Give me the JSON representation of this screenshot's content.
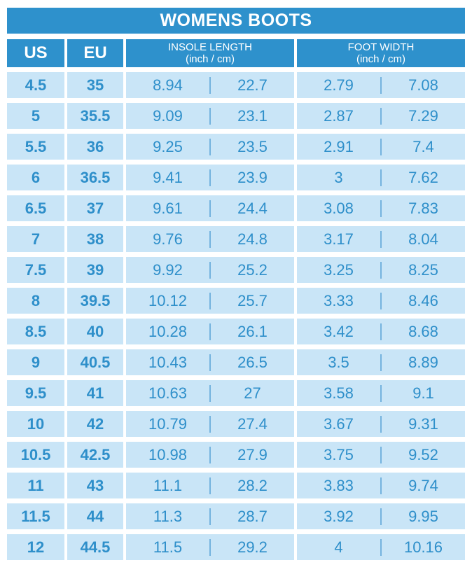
{
  "title": "WOMENS BOOTS",
  "colors": {
    "header_bg": "#2E91CC",
    "cell_bg": "#C9E5F7",
    "text_blue": "#2E8FCA",
    "divider": "#74B3DE",
    "header_text": "#FFFFFF"
  },
  "table": {
    "columns": {
      "us": "US",
      "eu": "EU",
      "insole": {
        "title": "INSOLE LENGTH",
        "subtitle": "(inch / cm)"
      },
      "foot": {
        "title": "FOOT WIDTH",
        "subtitle": "(inch / cm)"
      }
    },
    "rows": [
      {
        "us": "4.5",
        "eu": "35",
        "insole_inch": "8.94",
        "insole_cm": "22.7",
        "foot_inch": "2.79",
        "foot_cm": "7.08"
      },
      {
        "us": "5",
        "eu": "35.5",
        "insole_inch": "9.09",
        "insole_cm": "23.1",
        "foot_inch": "2.87",
        "foot_cm": "7.29"
      },
      {
        "us": "5.5",
        "eu": "36",
        "insole_inch": "9.25",
        "insole_cm": "23.5",
        "foot_inch": "2.91",
        "foot_cm": "7.4"
      },
      {
        "us": "6",
        "eu": "36.5",
        "insole_inch": "9.41",
        "insole_cm": "23.9",
        "foot_inch": "3",
        "foot_cm": "7.62"
      },
      {
        "us": "6.5",
        "eu": "37",
        "insole_inch": "9.61",
        "insole_cm": "24.4",
        "foot_inch": "3.08",
        "foot_cm": "7.83"
      },
      {
        "us": "7",
        "eu": "38",
        "insole_inch": "9.76",
        "insole_cm": "24.8",
        "foot_inch": "3.17",
        "foot_cm": "8.04"
      },
      {
        "us": "7.5",
        "eu": "39",
        "insole_inch": "9.92",
        "insole_cm": "25.2",
        "foot_inch": "3.25",
        "foot_cm": "8.25"
      },
      {
        "us": "8",
        "eu": "39.5",
        "insole_inch": "10.12",
        "insole_cm": "25.7",
        "foot_inch": "3.33",
        "foot_cm": "8.46"
      },
      {
        "us": "8.5",
        "eu": "40",
        "insole_inch": "10.28",
        "insole_cm": "26.1",
        "foot_inch": "3.42",
        "foot_cm": "8.68"
      },
      {
        "us": "9",
        "eu": "40.5",
        "insole_inch": "10.43",
        "insole_cm": "26.5",
        "foot_inch": "3.5",
        "foot_cm": "8.89"
      },
      {
        "us": "9.5",
        "eu": "41",
        "insole_inch": "10.63",
        "insole_cm": "27",
        "foot_inch": "3.58",
        "foot_cm": "9.1"
      },
      {
        "us": "10",
        "eu": "42",
        "insole_inch": "10.79",
        "insole_cm": "27.4",
        "foot_inch": "3.67",
        "foot_cm": "9.31"
      },
      {
        "us": "10.5",
        "eu": "42.5",
        "insole_inch": "10.98",
        "insole_cm": "27.9",
        "foot_inch": "3.75",
        "foot_cm": "9.52"
      },
      {
        "us": "11",
        "eu": "43",
        "insole_inch": "11.1",
        "insole_cm": "28.2",
        "foot_inch": "3.83",
        "foot_cm": "9.74"
      },
      {
        "us": "11.5",
        "eu": "44",
        "insole_inch": "11.3",
        "insole_cm": "28.7",
        "foot_inch": "3.92",
        "foot_cm": "9.95"
      },
      {
        "us": "12",
        "eu": "44.5",
        "insole_inch": "11.5",
        "insole_cm": "29.2",
        "foot_inch": "4",
        "foot_cm": "10.16"
      }
    ]
  },
  "chart_data": {
    "type": "table",
    "title": "WOMENS BOOTS",
    "columns": [
      "US",
      "EU",
      "INSOLE LENGTH (inch)",
      "INSOLE LENGTH (cm)",
      "FOOT WIDTH (inch)",
      "FOOT WIDTH (cm)"
    ],
    "rows": [
      [
        4.5,
        35,
        8.94,
        22.7,
        2.79,
        7.08
      ],
      [
        5,
        35.5,
        9.09,
        23.1,
        2.87,
        7.29
      ],
      [
        5.5,
        36,
        9.25,
        23.5,
        2.91,
        7.4
      ],
      [
        6,
        36.5,
        9.41,
        23.9,
        3,
        7.62
      ],
      [
        6.5,
        37,
        9.61,
        24.4,
        3.08,
        7.83
      ],
      [
        7,
        38,
        9.76,
        24.8,
        3.17,
        8.04
      ],
      [
        7.5,
        39,
        9.92,
        25.2,
        3.25,
        8.25
      ],
      [
        8,
        39.5,
        10.12,
        25.7,
        3.33,
        8.46
      ],
      [
        8.5,
        40,
        10.28,
        26.1,
        3.42,
        8.68
      ],
      [
        9,
        40.5,
        10.43,
        26.5,
        3.5,
        8.89
      ],
      [
        9.5,
        41,
        10.63,
        27,
        3.58,
        9.1
      ],
      [
        10,
        42,
        10.79,
        27.4,
        3.67,
        9.31
      ],
      [
        10.5,
        42.5,
        10.98,
        27.9,
        3.75,
        9.52
      ],
      [
        11,
        43,
        11.1,
        28.2,
        3.83,
        9.74
      ],
      [
        11.5,
        44,
        11.3,
        28.7,
        3.92,
        9.95
      ],
      [
        12,
        44.5,
        11.5,
        29.2,
        4,
        10.16
      ]
    ]
  }
}
